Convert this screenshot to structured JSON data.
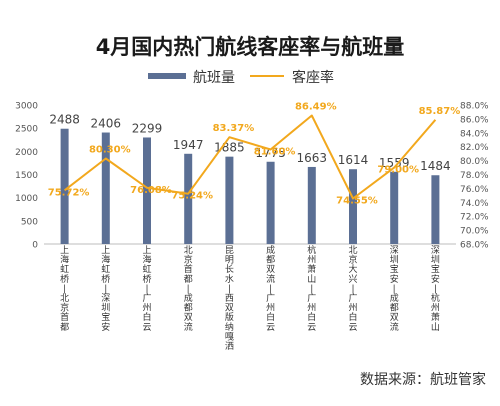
{
  "chart_data": {
    "type": "bar",
    "title": "4月国内热门航线客座率与航班量",
    "categories": [
      "上海虹桥—北京首都",
      "上海虹桥—深圳宝安",
      "上海虹桥—广州白云",
      "北京首都—成都双流",
      "昆明长水—西双版纳嘎洒",
      "成都双流—广州白云",
      "杭州萧山—广州白云",
      "北京大兴—广州白云",
      "深圳宝安—成都双流",
      "深圳宝安—杭州萧山"
    ],
    "series": [
      {
        "name": "航班量",
        "type": "bar",
        "axis": "left",
        "color": "#5b6f94",
        "values": [
          2488,
          2406,
          2299,
          1947,
          1885,
          1775,
          1663,
          1614,
          1559,
          1484
        ],
        "labels": [
          "2488",
          "2406",
          "2299",
          "1947",
          "1885",
          "1775",
          "1663",
          "1614",
          "1559",
          "1484"
        ]
      },
      {
        "name": "客座率",
        "type": "line",
        "axis": "right",
        "color": "#f2a81d",
        "values": [
          75.72,
          80.3,
          76.08,
          75.24,
          83.37,
          81.6,
          86.49,
          74.55,
          79.0,
          85.87
        ],
        "labels": [
          "75.72%",
          "80.30%",
          "76.08%",
          "75.24%",
          "83.37%",
          "81.60%",
          "86.49%",
          "74.55%",
          "79.00%",
          "85.87%"
        ]
      }
    ],
    "y_left": {
      "ylim": [
        0,
        3000
      ],
      "ticks": [
        "0",
        "500",
        "1000",
        "1500",
        "2000",
        "2500",
        "3000"
      ]
    },
    "y_right": {
      "ylim": [
        68,
        88
      ],
      "ticks": [
        "68.0%",
        "70.0%",
        "72.0%",
        "74.0%",
        "76.0%",
        "78.0%",
        "80.0%",
        "82.0%",
        "84.0%",
        "86.0%",
        "88.0%"
      ]
    },
    "legend_position": "top-center",
    "grid": false,
    "source": "数据来源：航班管家"
  }
}
